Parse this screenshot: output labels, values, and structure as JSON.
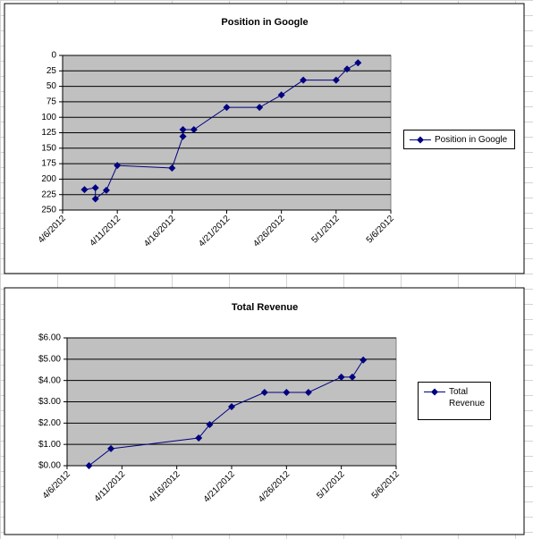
{
  "chart_data": [
    {
      "type": "line",
      "title": "Position in Google",
      "x": [
        "2012-04-08",
        "2012-04-09",
        "2012-04-09",
        "2012-04-10",
        "2012-04-11",
        "2012-04-16",
        "2012-04-17",
        "2012-04-17",
        "2012-04-18",
        "2012-04-21",
        "2012-04-24",
        "2012-04-26",
        "2012-04-28",
        "2012-05-01",
        "2012-05-02",
        "2012-05-03"
      ],
      "series": [
        {
          "name": "Position in Google",
          "color": "#000080",
          "values": [
            217,
            214,
            232,
            218,
            178,
            182,
            131,
            120,
            120,
            84,
            84,
            64,
            40,
            40,
            22,
            12
          ]
        }
      ],
      "xlim": [
        "2012-04-06",
        "2012-05-06"
      ],
      "xticks": [
        {
          "value": "2012-04-06",
          "label": "4/6/2012"
        },
        {
          "value": "2012-04-11",
          "label": "4/11/2012"
        },
        {
          "value": "2012-04-16",
          "label": "4/16/2012"
        },
        {
          "value": "2012-04-21",
          "label": "4/21/2012"
        },
        {
          "value": "2012-04-26",
          "label": "4/26/2012"
        },
        {
          "value": "2012-05-01",
          "label": "5/1/2012"
        },
        {
          "value": "2012-05-06",
          "label": "5/6/2012"
        }
      ],
      "ylim": [
        0,
        250
      ],
      "yticks": [
        0,
        25,
        50,
        75,
        100,
        125,
        150,
        175,
        200,
        225,
        250
      ],
      "y_reversed": true,
      "grid": true,
      "legend": "right"
    },
    {
      "type": "line",
      "title": "Total Revenue",
      "x": [
        "2012-04-08",
        "2012-04-10",
        "2012-04-18",
        "2012-04-19",
        "2012-04-21",
        "2012-04-24",
        "2012-04-26",
        "2012-04-28",
        "2012-05-01",
        "2012-05-02",
        "2012-05-03"
      ],
      "series": [
        {
          "name": "Total Revenue",
          "color": "#000080",
          "values": [
            0,
            0.8,
            1.3,
            1.93,
            2.77,
            3.44,
            3.44,
            3.44,
            4.16,
            4.16,
            4.96
          ]
        }
      ],
      "xlim": [
        "2012-04-06",
        "2012-05-06"
      ],
      "xticks": [
        {
          "value": "2012-04-06",
          "label": "4/6/2012"
        },
        {
          "value": "2012-04-11",
          "label": "4/11/2012"
        },
        {
          "value": "2012-04-16",
          "label": "4/16/2012"
        },
        {
          "value": "2012-04-21",
          "label": "4/21/2012"
        },
        {
          "value": "2012-04-26",
          "label": "4/26/2012"
        },
        {
          "value": "2012-05-01",
          "label": "5/1/2012"
        },
        {
          "value": "2012-05-06",
          "label": "5/6/2012"
        }
      ],
      "ylim": [
        0,
        6
      ],
      "yticks": [
        {
          "value": 0,
          "label": "$0.00"
        },
        {
          "value": 1,
          "label": "$1.00"
        },
        {
          "value": 2,
          "label": "$2.00"
        },
        {
          "value": 3,
          "label": "$3.00"
        },
        {
          "value": 4,
          "label": "$4.00"
        },
        {
          "value": 5,
          "label": "$5.00"
        },
        {
          "value": 6,
          "label": "$6.00"
        }
      ],
      "y_reversed": false,
      "grid": true,
      "legend": "right"
    }
  ]
}
